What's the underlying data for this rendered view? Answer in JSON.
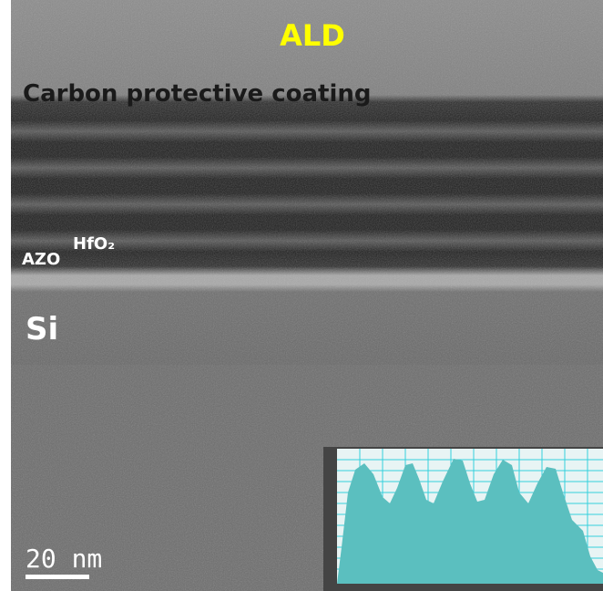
{
  "title": "ALD",
  "labels": {
    "coating": "Carbon protective coating",
    "azo": "AZO",
    "hfo2": "HfO₂",
    "substrate": "Si"
  },
  "scale_bar": "20 nm"
}
